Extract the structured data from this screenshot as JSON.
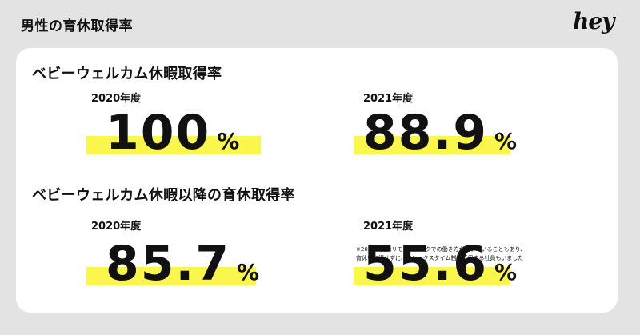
{
  "header": {
    "title": "男性の育休取得率",
    "logo": "hey"
  },
  "sections": [
    {
      "title": "ベビーウェルカム休暇取得率",
      "stats": [
        {
          "year": "2020年度",
          "value": "100",
          "unit": "%"
        },
        {
          "year": "2021年度",
          "value": "88.9",
          "unit": "%"
        }
      ]
    },
    {
      "title": "ベビーウェルカム休暇以降の育休取得率",
      "stats": [
        {
          "year": "2020年度",
          "value": "85.7",
          "unit": "%"
        },
        {
          "year": "2021年度",
          "value": "55.6",
          "unit": "%"
        }
      ]
    }
  ],
  "footnote": {
    "line1": "※2021年度はリモートワークでの働き方が続いていることもあり、",
    "line2": "育休を取得せずに、フレックスタイム制を活用する社員もいました"
  },
  "colors": {
    "highlight": "#fbf64c",
    "background": "#e3e3e3",
    "card": "#ffffff"
  }
}
